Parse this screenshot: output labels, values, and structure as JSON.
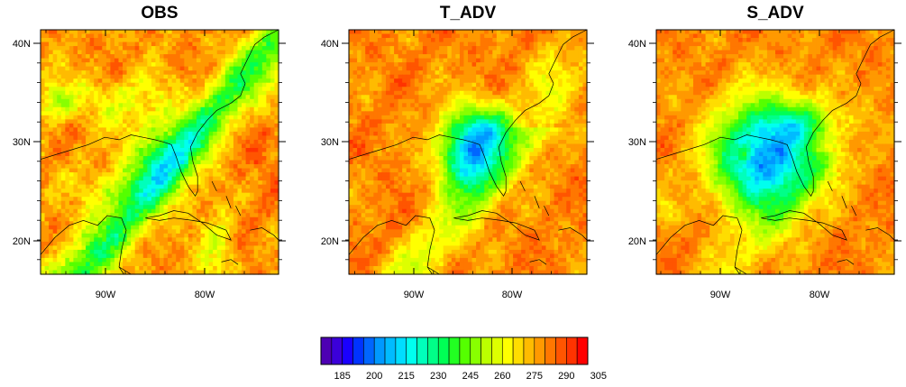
{
  "chart_data": [
    {
      "type": "heatmap",
      "title": "OBS",
      "field": "obs",
      "x_ticks": [
        "90W",
        "80W"
      ],
      "y_ticks": [
        "40N",
        "30N",
        "20N"
      ],
      "grid": false
    },
    {
      "type": "heatmap",
      "title": "T_ADV",
      "field": "tadv",
      "x_ticks": [
        "90W",
        "80W"
      ],
      "y_ticks": [
        "40N",
        "30N",
        "20N"
      ],
      "grid": false
    },
    {
      "type": "heatmap",
      "title": "S_ADV",
      "field": "sadv",
      "x_ticks": [
        "90W",
        "80W"
      ],
      "y_ticks": [
        "40N",
        "30N",
        "20N"
      ],
      "grid": false
    }
  ],
  "colorbar": {
    "labels": [
      "185",
      "200",
      "215",
      "230",
      "245",
      "260",
      "275",
      "290",
      "305"
    ],
    "colors": [
      "#4d00b3",
      "#3b00d9",
      "#1a00ff",
      "#0033ff",
      "#0066ff",
      "#0099ff",
      "#00bbff",
      "#00ddff",
      "#00ffee",
      "#00ffbb",
      "#00ff88",
      "#00ff55",
      "#22ff22",
      "#55ff00",
      "#88ff00",
      "#bbff00",
      "#ddff00",
      "#ffff00",
      "#ffdd00",
      "#ffbb00",
      "#ff9900",
      "#ff7700",
      "#ff5500",
      "#ff3300",
      "#ff0000"
    ],
    "orientation": "horizontal"
  }
}
